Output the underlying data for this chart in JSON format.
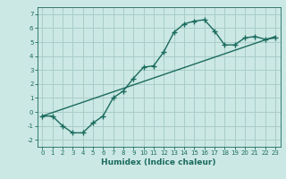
{
  "xlabel": "Humidex (Indice chaleur)",
  "ylabel": "",
  "xlim": [
    -0.5,
    23.5
  ],
  "ylim": [
    -2.5,
    7.5
  ],
  "xticks": [
    0,
    1,
    2,
    3,
    4,
    5,
    6,
    7,
    8,
    9,
    10,
    11,
    12,
    13,
    14,
    15,
    16,
    17,
    18,
    19,
    20,
    21,
    22,
    23
  ],
  "yticks": [
    -2,
    -1,
    0,
    1,
    2,
    3,
    4,
    5,
    6,
    7
  ],
  "bg_color": "#cce8e4",
  "grid_color": "#a8cdc8",
  "line_color": "#1a6b5e",
  "curve1_x": [
    0,
    1,
    2,
    3,
    4,
    5,
    6,
    7,
    8,
    9,
    10,
    11,
    12,
    13,
    14,
    15,
    16,
    17,
    18,
    19,
    20,
    21,
    22,
    23
  ],
  "curve1_y": [
    -0.3,
    -0.3,
    -1.0,
    -1.5,
    -1.5,
    -0.8,
    -0.3,
    1.0,
    1.5,
    2.4,
    3.2,
    3.3,
    4.3,
    5.7,
    6.3,
    6.5,
    6.6,
    5.8,
    4.8,
    4.8,
    5.3,
    5.4,
    5.2,
    5.3
  ],
  "curve2_x": [
    0,
    23
  ],
  "curve2_y": [
    -0.3,
    5.4
  ]
}
